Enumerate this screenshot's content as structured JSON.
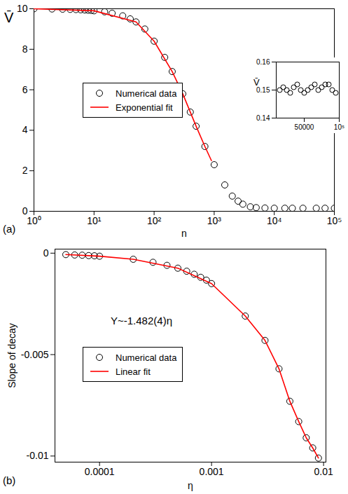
{
  "chart_data": [
    {
      "type": "scatter",
      "panel_label": "(a)",
      "x_label": "n",
      "y_label": "V̄",
      "log": "x",
      "legend": "center left",
      "xlim": [
        1,
        100000
      ],
      "ylim": [
        0,
        10
      ],
      "xticks": [
        {
          "value": 1,
          "label": "10⁰"
        },
        {
          "value": 10,
          "label": "10¹"
        },
        {
          "value": 100,
          "label": "10²"
        },
        {
          "value": 1000,
          "label": "10³"
        },
        {
          "value": 10000,
          "label": "10⁴"
        },
        {
          "value": 100000,
          "label": "10⁵"
        }
      ],
      "yticks": [
        0,
        2,
        4,
        6,
        8,
        10
      ],
      "series": [
        {
          "name": "Numerical data",
          "type": "scatter",
          "marker": "circle",
          "color": "#000000",
          "x": [
            1,
            2,
            3,
            4,
            5,
            6,
            7,
            8,
            9,
            10,
            15,
            20,
            30,
            40,
            50,
            70,
            100,
            150,
            200,
            300,
            400,
            500,
            700,
            1000,
            1500,
            2000,
            2500,
            3000,
            4000,
            5000,
            7000,
            10000,
            15000,
            20000,
            30000,
            50000,
            70000,
            100000
          ],
          "values": [
            10,
            9.99,
            9.98,
            9.97,
            9.96,
            9.95,
            9.94,
            9.93,
            9.92,
            9.9,
            9.85,
            9.78,
            9.65,
            9.5,
            9.35,
            9.0,
            8.4,
            7.6,
            6.9,
            5.8,
            4.9,
            4.2,
            3.2,
            2.3,
            1.3,
            0.75,
            0.5,
            0.35,
            0.22,
            0.18,
            0.16,
            0.15,
            0.15,
            0.15,
            0.15,
            0.15,
            0.15,
            0.15
          ]
        },
        {
          "name": "Exponential fit",
          "type": "line",
          "color": "#ff0000",
          "x": [
            1,
            10,
            50,
            100,
            200,
            300,
            500,
            700,
            900
          ],
          "values": [
            10,
            9.9,
            9.35,
            8.4,
            6.9,
            5.8,
            4.2,
            3.2,
            2.5
          ]
        }
      ]
    },
    {
      "type": "scatter",
      "panel_label": "(b)",
      "x_label": "η",
      "y_label": "Slope of decay",
      "log": "x",
      "legend": "center left",
      "annotations": [
        "Y~-1.482(4)η"
      ],
      "xlim": [
        4e-05,
        0.0105
      ],
      "ylim": [
        -0.0103,
        0.0002
      ],
      "xticks": [
        0.0001,
        0.001,
        0.01
      ],
      "yticks": [
        0,
        -0.005,
        -0.01
      ],
      "series": [
        {
          "name": "Numerical data",
          "type": "scatter",
          "marker": "circle",
          "color": "#000000",
          "x": [
            5e-05,
            6e-05,
            7e-05,
            8e-05,
            9e-05,
            0.0001,
            0.0002,
            0.0003,
            0.0004,
            0.0005,
            0.0006,
            0.0007,
            0.0008,
            0.0009,
            0.001,
            0.002,
            0.003,
            0.004,
            0.005,
            0.006,
            0.007,
            0.008,
            0.009
          ],
          "values": [
            -7e-05,
            -9e-05,
            -0.0001,
            -0.00012,
            -0.00013,
            -0.00015,
            -0.0003,
            -0.00045,
            -0.0006,
            -0.00074,
            -0.00089,
            -0.00104,
            -0.00119,
            -0.00133,
            -0.0015,
            -0.0031,
            -0.0043,
            -0.0057,
            -0.0073,
            -0.0083,
            -0.0091,
            -0.0096,
            -0.0101
          ]
        },
        {
          "name": "Linear fit",
          "type": "line",
          "color": "#ff0000",
          "x": [
            5e-05,
            0.0001,
            0.0002,
            0.0005,
            0.001,
            0.002,
            0.003,
            0.004,
            0.005,
            0.006,
            0.007,
            0.008,
            0.009
          ],
          "values": [
            -7e-05,
            -0.00015,
            -0.0003,
            -0.00074,
            -0.0015,
            -0.0031,
            -0.0043,
            -0.0057,
            -0.0073,
            -0.0083,
            -0.0091,
            -0.0096,
            -0.0101
          ]
        }
      ]
    },
    {
      "type": "scatter",
      "y_label": "V̄",
      "xlim": [
        10000,
        100000
      ],
      "ylim": [
        0.14,
        0.16
      ],
      "xticks": [
        50000,
        {
          "value": 100000,
          "label": "10⁵"
        }
      ],
      "yticks": [
        0.14,
        0.15,
        0.16
      ],
      "series": [
        {
          "type": "scatter",
          "marker": "circle",
          "color": "#000000",
          "x": [
            15000,
            20000,
            25000,
            30000,
            35000,
            40000,
            45000,
            50000,
            55000,
            60000,
            65000,
            70000,
            75000,
            80000,
            85000,
            90000,
            95000
          ],
          "values": [
            0.15,
            0.151,
            0.15,
            0.149,
            0.151,
            0.152,
            0.15,
            0.149,
            0.15,
            0.151,
            0.152,
            0.15,
            0.151,
            0.152,
            0.152,
            0.15,
            0.149
          ]
        }
      ]
    }
  ]
}
